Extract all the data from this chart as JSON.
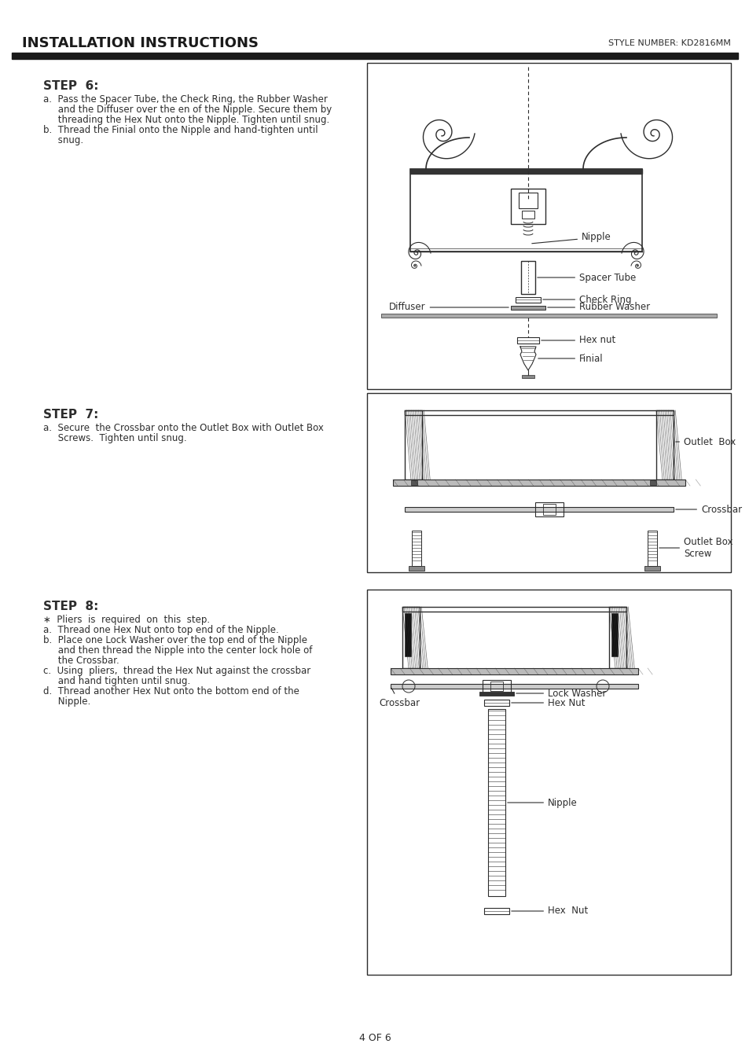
{
  "title_left": "INSTALLATION INSTRUCTIONS",
  "title_right": "STYLE NUMBER: KD2816MM",
  "background_color": "#ffffff",
  "text_color": "#2d2d2d",
  "border_color": "#2d2d2d",
  "page_number": "4 OF 6",
  "step6": {
    "heading": "STEP  6:",
    "lines": [
      "a.  Pass the Spacer Tube, the Check Ring, the Rubber Washer",
      "     and the Diffuser over the en of the Nipple. Secure them by",
      "     threading the Hex Nut onto the Nipple. Tighten until snug.",
      "b.  Thread the Finial onto the Nipple and hand-tighten until",
      "     snug."
    ]
  },
  "step7": {
    "heading": "STEP  7:",
    "lines": [
      "a.  Secure  the Crossbar onto the Outlet Box with Outlet Box",
      "     Screws.  Tighten until snug."
    ]
  },
  "step8": {
    "heading": "STEP  8:",
    "lines": [
      "∗  Pliers  is  required  on  this  step.",
      "a.  Thread one Hex Nut onto top end of the Nipple.",
      "b.  Place one Lock Washer over the top end of the Nipple",
      "     and then thread the Nipple into the center lock hole of",
      "     the Crossbar.",
      "c.  Using  pliers,  thread the Hex Nut against the crossbar",
      "     and hand tighten until snug.",
      "d.  Thread another Hex Nut onto the bottom end of the",
      "     Nipple."
    ]
  }
}
